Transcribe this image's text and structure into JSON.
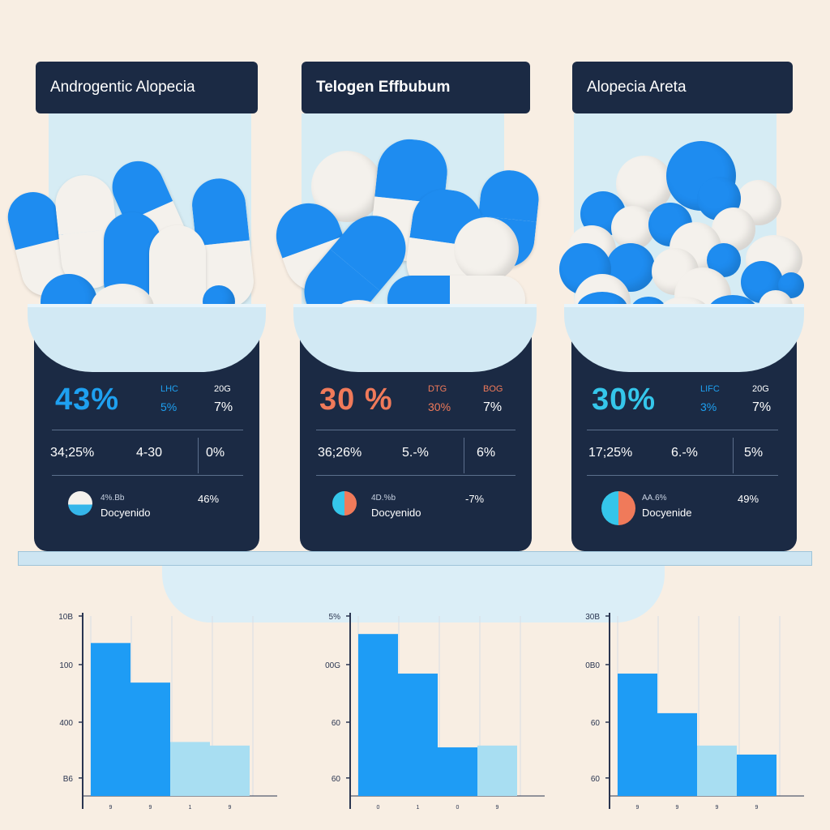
{
  "panels": [
    {
      "title": "Androgentic Alopecia",
      "main_pct": "43%",
      "main_pct_color": "#1ea0f0",
      "col_head_1": "LHC",
      "col_head_2": "20G",
      "col_val_1": "5%",
      "col_val_2": "7%",
      "row2_a": "34;25%",
      "row2_b": "4-30",
      "row2_c": "0%",
      "legend_top": "4%.Bb",
      "legend_bottom": "Docyenido",
      "legend_value": "46%",
      "legend_colors": [
        "#f4f1ec",
        "#1e8cf0"
      ],
      "stat_color": "#1ea0f0"
    },
    {
      "title": "Telogen Effbubum",
      "main_pct": "30 %",
      "main_pct_color": "#f07a5a",
      "col_head_1": "DTG",
      "col_head_2": "BOG",
      "col_val_1": "30%",
      "col_val_2": "7%",
      "row2_a": "36;26%",
      "row2_b": "5.-%",
      "row2_c": "6%",
      "legend_top": "4D.%b",
      "legend_bottom": "Docyenido",
      "legend_value": "-7%",
      "legend_colors": [
        "#35c6ea",
        "#f07a5a"
      ],
      "stat_color": "#f07a5a"
    },
    {
      "title": "Alopecia Areta",
      "main_pct": "30%",
      "main_pct_color": "#35c6ea",
      "col_head_1": "LIFC",
      "col_head_2": "20G",
      "col_val_1": "3%",
      "col_val_2": "7%",
      "row2_a": "17;25%",
      "row2_b": "6.-%",
      "row2_c": "5%",
      "legend_top": "AA.6%",
      "legend_bottom": "Docyenide",
      "legend_value": "49%",
      "legend_colors": [
        "#35c6ea",
        "#f07a5a"
      ],
      "stat_color": "#1ea0f0"
    }
  ],
  "chart_data": [
    {
      "type": "bar",
      "yticks": [
        "10B",
        "100",
        "400",
        "B6"
      ],
      "xticks": [
        "9",
        "9",
        "1",
        "9"
      ],
      "values": [
        0.85,
        0.63,
        0.3,
        0.28
      ],
      "colors": [
        "#1e9cf5",
        "#1e9cf5",
        "#a8def2",
        "#a8def2"
      ]
    },
    {
      "type": "bar",
      "yticks": [
        "5%",
        "00G",
        "60",
        "60"
      ],
      "xticks": [
        "0",
        "1",
        "0",
        "9"
      ],
      "values": [
        0.9,
        0.68,
        0.27,
        0.28
      ],
      "colors": [
        "#1e9cf5",
        "#1e9cf5",
        "#1e9cf5",
        "#a8def2"
      ]
    },
    {
      "type": "bar",
      "yticks": [
        "30B",
        "0B0",
        "60",
        "60"
      ],
      "xticks": [
        "9",
        "9",
        "9",
        "9"
      ],
      "values": [
        0.68,
        0.46,
        0.28,
        0.23
      ],
      "colors": [
        "#1e9cf5",
        "#1e9cf5",
        "#a8def2",
        "#1e9cf5"
      ]
    }
  ]
}
